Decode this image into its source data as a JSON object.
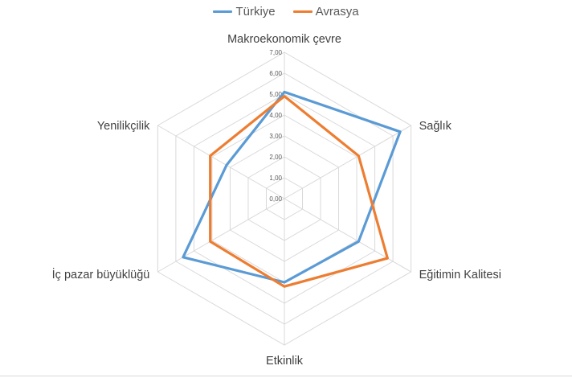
{
  "chart_data": {
    "type": "radar",
    "categories": [
      "Makroekonomik çevre",
      "Sağlık",
      "Eğitimin Kalitesi",
      "Etkinlik",
      "İç pazar büyüklüğü",
      "Yenilikçilik"
    ],
    "series": [
      {
        "name": "Türkiye",
        "color": "#5b9bd5",
        "values": [
          5.1,
          6.4,
          4.1,
          4.0,
          5.6,
          3.2
        ]
      },
      {
        "name": "Avrasya",
        "color": "#ed7d31",
        "values": [
          4.9,
          4.1,
          5.7,
          4.2,
          4.1,
          4.1
        ]
      }
    ],
    "rlim": [
      0,
      7
    ],
    "tick_labels": [
      "0,00",
      "1,00",
      "2,00",
      "3,00",
      "4,00",
      "5,00",
      "6,00",
      "7,00"
    ],
    "legend_position": "top",
    "grid": true
  }
}
